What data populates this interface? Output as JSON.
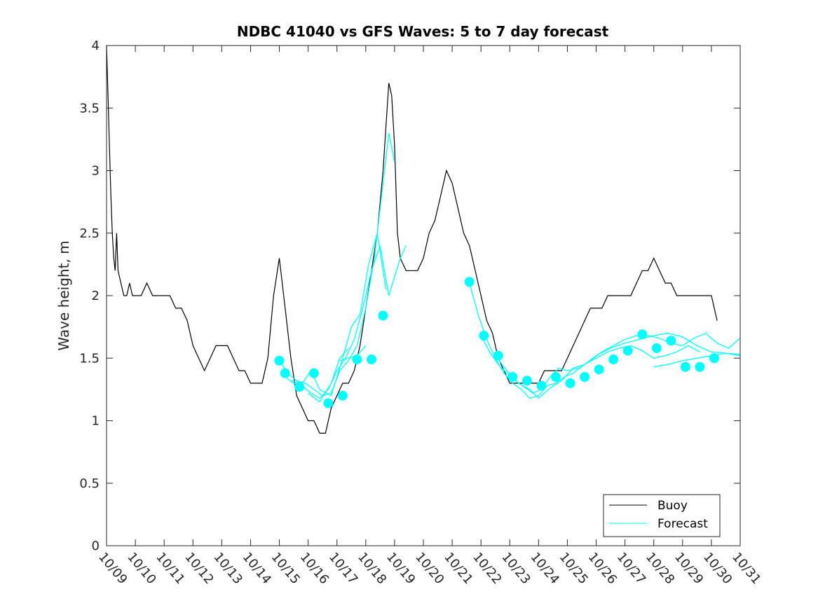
{
  "chart_data": {
    "type": "line",
    "title": "NDBC 41040 vs GFS Waves: 5 to 7 day forecast",
    "xlabel": "",
    "ylabel": "Wave height, m",
    "xlim": [
      0,
      22
    ],
    "ylim": [
      0,
      4
    ],
    "x_tick_labels": [
      "10/09",
      "10/10",
      "10/11",
      "10/12",
      "10/13",
      "10/14",
      "10/15",
      "10/16",
      "10/17",
      "10/18",
      "10/19",
      "10/20",
      "10/21",
      "10/22",
      "10/23",
      "10/24",
      "10/25",
      "10/26",
      "10/27",
      "10/28",
      "10/29",
      "10/30",
      "10/31"
    ],
    "y_ticks": [
      0,
      0.5,
      1,
      1.5,
      2,
      2.5,
      3,
      3.5,
      4
    ],
    "y_tick_labels": [
      "0",
      "0.5",
      "1",
      "1.5",
      "2",
      "2.5",
      "3",
      "3.5",
      "4"
    ],
    "legend": {
      "location": "bottom-right",
      "entries": [
        "Buoy",
        "Forecast"
      ]
    },
    "colors": {
      "buoy": "#000000",
      "forecast": "#00ffff",
      "axis": "#262626"
    },
    "series": [
      {
        "name": "Buoy",
        "x": [
          0,
          0.05,
          0.1,
          0.15,
          0.2,
          0.25,
          0.3,
          0.35,
          0.4,
          0.5,
          0.6,
          0.7,
          0.8,
          0.9,
          1.0,
          1.2,
          1.4,
          1.6,
          1.8,
          2.0,
          2.2,
          2.4,
          2.6,
          2.8,
          3.0,
          3.2,
          3.4,
          3.6,
          3.8,
          4.0,
          4.2,
          4.4,
          4.6,
          4.8,
          5.0,
          5.2,
          5.4,
          5.6,
          5.8,
          6.0,
          6.2,
          6.4,
          6.6,
          6.8,
          7.0,
          7.2,
          7.4,
          7.6,
          7.8,
          8.0,
          8.2,
          8.4,
          8.6,
          8.8,
          9.0,
          9.2,
          9.4,
          9.6,
          9.8,
          9.9,
          10.0,
          10.1,
          10.2,
          10.4,
          10.6,
          10.8,
          11.0,
          11.2,
          11.4,
          11.6,
          11.8,
          12.0,
          12.2,
          12.4,
          12.6,
          12.8,
          13.0,
          13.2,
          13.4,
          13.6,
          13.8,
          14.0,
          14.2,
          14.4,
          14.6,
          14.8,
          15.0,
          15.2,
          15.4,
          15.6,
          15.8,
          16.0,
          16.2,
          16.4,
          16.6,
          16.8,
          17.0,
          17.2,
          17.4,
          17.6,
          17.8,
          18.0,
          18.2,
          18.4,
          18.6,
          18.8,
          19.0,
          19.2,
          19.4,
          19.6,
          19.8,
          20.0,
          20.2,
          20.4,
          20.6,
          20.8,
          21.0,
          21.2
        ],
        "y": [
          4.0,
          3.6,
          3.2,
          2.8,
          2.5,
          2.3,
          2.2,
          2.5,
          2.2,
          2.1,
          2.0,
          2.0,
          2.1,
          2.0,
          2.0,
          2.0,
          2.1,
          2.0,
          2.0,
          2.0,
          2.0,
          1.9,
          1.9,
          1.8,
          1.6,
          1.5,
          1.4,
          1.5,
          1.6,
          1.6,
          1.6,
          1.5,
          1.4,
          1.4,
          1.3,
          1.3,
          1.3,
          1.5,
          2.0,
          2.3,
          1.9,
          1.5,
          1.2,
          1.1,
          1.0,
          1.0,
          0.9,
          0.9,
          1.1,
          1.2,
          1.3,
          1.3,
          1.4,
          1.6,
          1.9,
          2.2,
          2.5,
          3.0,
          3.7,
          3.6,
          3.2,
          2.5,
          2.3,
          2.2,
          2.2,
          2.2,
          2.3,
          2.5,
          2.6,
          2.8,
          3.0,
          2.9,
          2.7,
          2.5,
          2.4,
          2.2,
          2.0,
          1.8,
          1.7,
          1.5,
          1.4,
          1.3,
          1.3,
          1.3,
          1.3,
          1.3,
          1.3,
          1.4,
          1.4,
          1.4,
          1.4,
          1.5,
          1.6,
          1.7,
          1.8,
          1.9,
          1.9,
          1.9,
          2.0,
          2.0,
          2.0,
          2.0,
          2.0,
          2.1,
          2.2,
          2.2,
          2.3,
          2.2,
          2.1,
          2.1,
          2.0,
          2.0,
          2.0,
          2.0,
          2.0,
          2.0,
          2.0,
          1.8
        ]
      },
      {
        "name": "Forecast",
        "segments": [
          {
            "x": [
              6.0,
              6.3,
              6.6,
              6.9,
              7.2,
              7.5,
              7.8,
              8.1,
              8.4,
              8.7,
              9.0,
              9.3,
              9.6,
              9.8,
              10.0
            ],
            "y": [
              1.48,
              1.38,
              1.32,
              1.3,
              1.25,
              1.2,
              1.22,
              1.4,
              1.48,
              1.6,
              1.9,
              2.3,
              2.9,
              3.3,
              3.07
            ]
          },
          {
            "x": [
              6.2,
              6.5,
              6.8,
              7.1,
              7.4,
              7.7,
              8.0,
              8.3,
              8.6,
              8.9,
              9.2,
              9.5,
              9.8,
              10.2,
              10.4
            ],
            "y": [
              1.35,
              1.3,
              1.28,
              1.22,
              1.18,
              1.25,
              1.4,
              1.5,
              1.65,
              1.9,
              2.2,
              2.4,
              2.0,
              2.3,
              2.4
            ]
          },
          {
            "x": [
              6.4,
              6.8,
              7.1,
              7.4,
              7.8,
              8.2,
              8.5,
              8.8,
              9.1,
              9.4,
              9.7
            ],
            "y": [
              1.32,
              1.3,
              1.4,
              1.25,
              1.2,
              1.5,
              1.75,
              1.85,
              2.25,
              2.5,
              2.05
            ]
          },
          {
            "x": [
              7.0,
              7.4,
              7.8,
              8.1,
              8.4
            ],
            "y": [
              1.22,
              1.15,
              1.3,
              1.5,
              1.58
            ]
          },
          {
            "x": [
              8.1,
              8.4,
              8.7,
              9.0
            ],
            "y": [
              1.48,
              1.5,
              1.52,
              1.6
            ]
          },
          {
            "x": [
              12.6,
              12.9,
              13.2,
              13.5,
              13.8,
              14.1,
              14.4,
              14.7,
              15.0,
              15.3,
              15.6,
              15.9,
              16.2,
              16.6,
              17.0,
              17.5,
              18.0,
              18.5,
              19.0,
              19.5,
              20.0,
              20.5,
              21.0,
              21.5,
              22.0
            ],
            "y": [
              2.1,
              1.85,
              1.65,
              1.5,
              1.38,
              1.3,
              1.25,
              1.18,
              1.2,
              1.28,
              1.3,
              1.35,
              1.38,
              1.45,
              1.52,
              1.58,
              1.62,
              1.65,
              1.68,
              1.7,
              1.67,
              1.6,
              1.55,
              1.54,
              1.52
            ]
          },
          {
            "x": [
              13.0,
              13.3,
              13.6,
              13.9,
              14.2,
              14.5,
              14.8,
              15.1,
              15.4,
              15.7,
              16.0,
              16.4,
              16.8,
              17.2,
              17.6,
              18.0,
              18.4,
              18.8,
              19.2,
              19.6,
              20.0,
              20.4,
              20.8,
              21.2,
              21.6,
              22.0
            ],
            "y": [
              1.68,
              1.55,
              1.45,
              1.38,
              1.32,
              1.27,
              1.22,
              1.25,
              1.35,
              1.42,
              1.4,
              1.42,
              1.48,
              1.55,
              1.6,
              1.65,
              1.68,
              1.68,
              1.66,
              1.62,
              1.6,
              1.66,
              1.7,
              1.62,
              1.58,
              1.66
            ]
          },
          {
            "x": [
              13.5,
              13.9,
              14.3,
              14.7,
              15.0,
              15.4,
              15.8,
              16.2,
              16.6,
              17.0,
              17.4,
              17.8,
              18.2,
              18.6,
              19.0,
              19.4,
              19.8,
              20.2,
              20.6
            ],
            "y": [
              1.52,
              1.4,
              1.3,
              1.25,
              1.18,
              1.26,
              1.32,
              1.42,
              1.45,
              1.5,
              1.55,
              1.58,
              1.6,
              1.56,
              1.5,
              1.52,
              1.55,
              1.6,
              1.55
            ]
          },
          {
            "x": [
              19.0,
              19.5,
              20.0,
              20.5,
              21.0,
              21.5,
              22.0
            ],
            "y": [
              1.43,
              1.45,
              1.48,
              1.5,
              1.52,
              1.54,
              1.53
            ]
          }
        ],
        "markers": {
          "x": [
            6.0,
            6.2,
            6.7,
            7.2,
            7.7,
            8.2,
            8.7,
            9.2,
            9.6,
            12.6,
            13.1,
            13.6,
            14.1,
            14.6,
            15.1,
            15.6,
            16.1,
            16.6,
            17.1,
            17.6,
            18.1,
            18.6,
            19.1,
            19.6,
            20.1,
            20.6,
            21.1
          ],
          "y": [
            1.48,
            1.38,
            1.27,
            1.38,
            1.14,
            1.2,
            1.49,
            1.49,
            1.84,
            2.11,
            1.68,
            1.52,
            1.35,
            1.32,
            1.28,
            1.35,
            1.3,
            1.35,
            1.41,
            1.49,
            1.56,
            1.69,
            1.58,
            1.64,
            1.43,
            1.43,
            1.5
          ]
        }
      }
    ]
  }
}
